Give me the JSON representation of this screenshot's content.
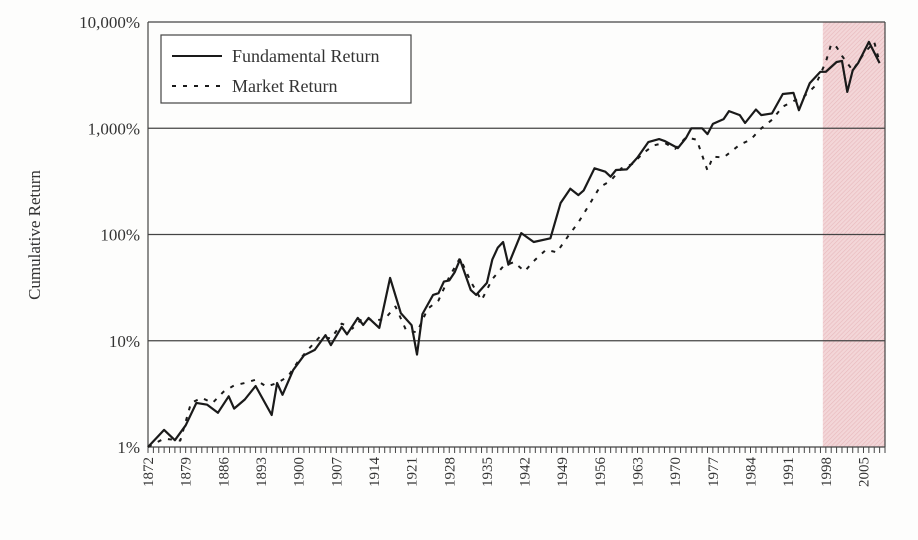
{
  "chart_data": {
    "type": "line",
    "title": "",
    "xlabel": "",
    "ylabel": "Cumulative Return",
    "yscale": "log",
    "ylim": [
      1,
      10000
    ],
    "xlim": [
      1872,
      2009
    ],
    "ytick_labels": [
      "1%",
      "10%",
      "100%",
      "1,000%",
      "10,000%"
    ],
    "ytick_values": [
      1,
      10,
      100,
      1000,
      10000
    ],
    "xtick_labels": [
      "1872",
      "1879",
      "1886",
      "1893",
      "1900",
      "1907",
      "1914",
      "1921",
      "1928",
      "1935",
      "1942",
      "1949",
      "1956",
      "1963",
      "1970",
      "1977",
      "1984",
      "1991",
      "1998",
      "2005"
    ],
    "grid": "horizontal",
    "legend_position": "top-left",
    "shaded_region": {
      "from": 1998,
      "to": 2009,
      "color": "#e8b8bc"
    },
    "series": [
      {
        "name": "Fundamental Return",
        "style": "solid",
        "x": [
          1872,
          1875,
          1877,
          1879,
          1881,
          1883,
          1885,
          1887,
          1888,
          1890,
          1892,
          1895,
          1896,
          1897,
          1899,
          1901,
          1903,
          1905,
          1906,
          1908,
          1909,
          1911,
          1912,
          1913,
          1915,
          1917,
          1919,
          1921,
          1922,
          1923,
          1925,
          1926,
          1927,
          1928,
          1929,
          1930,
          1932,
          1933,
          1935,
          1936,
          1937,
          1938,
          1939,
          1941.4,
          1943.7,
          1946.8,
          1948.7,
          1950.5,
          1952,
          1953,
          1955,
          1957,
          1958,
          1959,
          1961,
          1963,
          1965,
          1967,
          1968,
          1970.5,
          1972,
          1973,
          1975,
          1976,
          1977,
          1979,
          1980,
          1982,
          1983,
          1985,
          1986,
          1988,
          1990,
          1992,
          1993,
          1995,
          1997,
          1998,
          2000,
          2001,
          2002,
          2003,
          2004,
          2006,
          2008
        ],
        "values": [
          1,
          1.45,
          1.16,
          1.6,
          2.6,
          2.5,
          2.1,
          3.0,
          2.3,
          2.8,
          3.75,
          2.0,
          4.0,
          3.1,
          5.3,
          7.3,
          8.2,
          11.3,
          9.1,
          13.5,
          11.5,
          16.4,
          14.1,
          16.4,
          13.2,
          39,
          18.2,
          14,
          7.4,
          17.8,
          27,
          28,
          36,
          37,
          44,
          58,
          30,
          27,
          35,
          58,
          75,
          85,
          52,
          103,
          85,
          92,
          198,
          270,
          235,
          260,
          420,
          390,
          350,
          405,
          410,
          530,
          740,
          790,
          760,
          650,
          810,
          1000,
          1000,
          880,
          1100,
          1220,
          1450,
          1330,
          1120,
          1500,
          1330,
          1380,
          2100,
          2150,
          1480,
          2650,
          3400,
          3400,
          4200,
          4300,
          2200,
          3500,
          4100,
          6500,
          4100
        ]
      },
      {
        "name": "Market Return",
        "style": "dashed",
        "x": [
          1872,
          1875,
          1878,
          1880,
          1882,
          1884,
          1886,
          1888,
          1890,
          1892,
          1894,
          1896,
          1898,
          1900,
          1902,
          1904,
          1906,
          1908,
          1910,
          1912,
          1914,
          1916,
          1918,
          1920,
          1922,
          1924,
          1926,
          1928,
          1930,
          1932,
          1934,
          1936,
          1938,
          1940,
          1942,
          1944,
          1946,
          1948,
          1950,
          1952,
          1954,
          1956,
          1958,
          1960,
          1962,
          1964,
          1966,
          1968,
          1970,
          1972,
          1974,
          1976,
          1977,
          1979,
          1982,
          1984,
          1986,
          1988,
          1990,
          1992,
          1994,
          1996,
          1998,
          1999,
          2000,
          2001,
          2003,
          2005,
          2007,
          2008
        ],
        "values": [
          1,
          1.2,
          1.15,
          2.6,
          2.9,
          2.6,
          3.3,
          3.8,
          4.0,
          4.3,
          3.7,
          4.0,
          4.6,
          6.5,
          8.5,
          11,
          10.5,
          14.5,
          13,
          16.5,
          15.5,
          16,
          21,
          12.5,
          12,
          20,
          24,
          40,
          60,
          36,
          24,
          38,
          50,
          55,
          45,
          58,
          72,
          68,
          95,
          130,
          190,
          280,
          320,
          420,
          460,
          580,
          690,
          730,
          640,
          820,
          780,
          400,
          540,
          530,
          700,
          780,
          1000,
          1200,
          1600,
          1800,
          2000,
          2500,
          4200,
          6200,
          5800,
          4800,
          3500,
          5000,
          6500,
          4200
        ]
      }
    ]
  }
}
